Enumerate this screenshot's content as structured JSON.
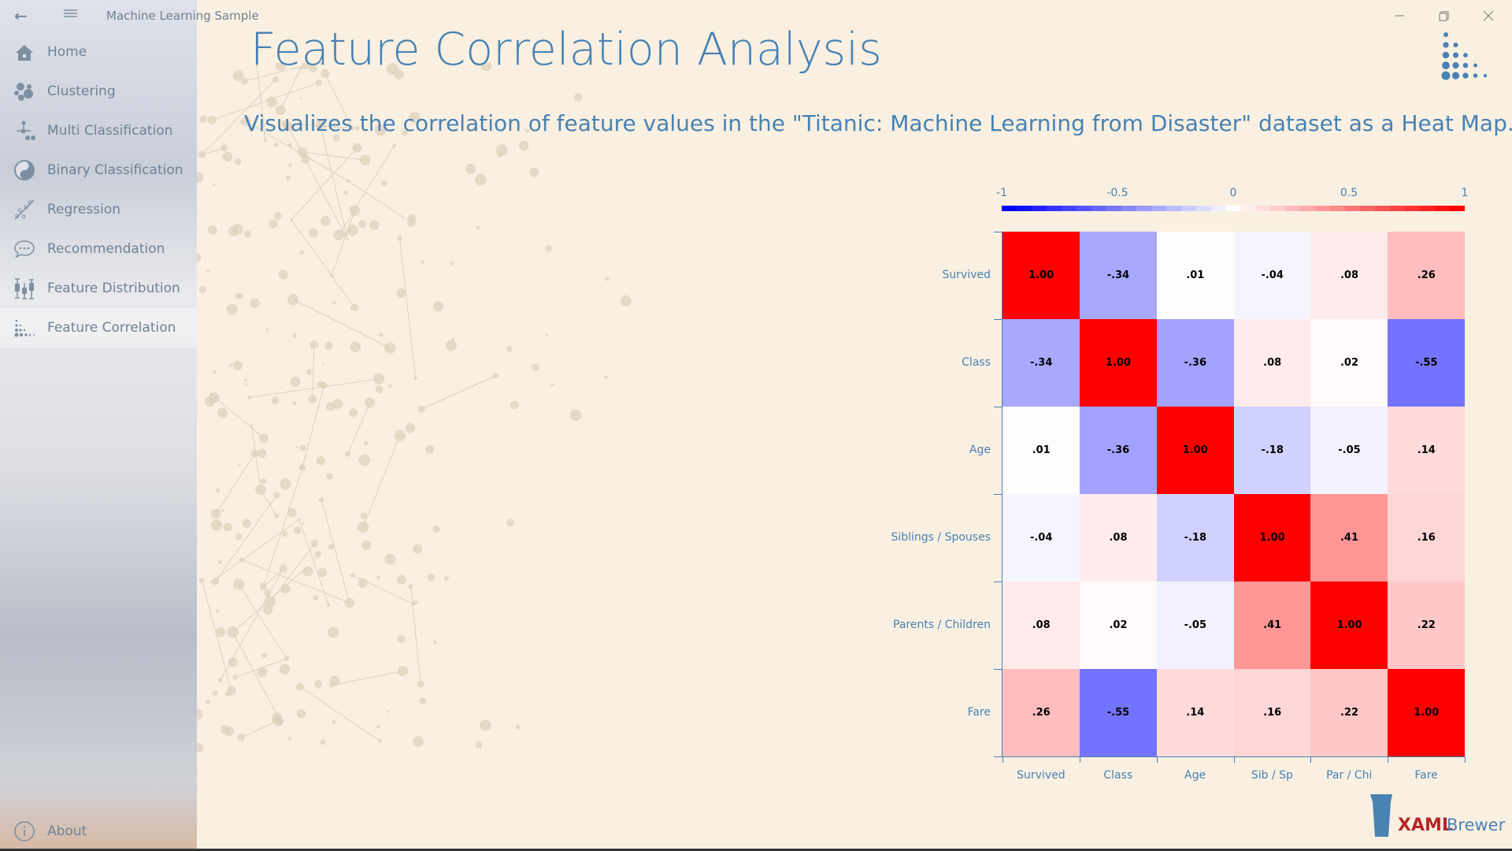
{
  "app_title": "Machine Learning Sample",
  "nav": [
    {
      "label": "Home",
      "icon": "home-icon"
    },
    {
      "label": "Clustering",
      "icon": "clustering-icon"
    },
    {
      "label": "Multi Classification",
      "icon": "multi-classification-icon"
    },
    {
      "label": "Binary Classification",
      "icon": "yin-yang-icon"
    },
    {
      "label": "Regression",
      "icon": "regression-icon"
    },
    {
      "label": "Recommendation",
      "icon": "chat-bubble-icon"
    },
    {
      "label": "Feature Distribution",
      "icon": "box-plot-icon"
    },
    {
      "label": "Feature Correlation",
      "icon": "dot-matrix-icon"
    }
  ],
  "about_label": "About",
  "page_title": "Feature Correlation Analysis",
  "subtitle": "Visualizes the correlation of feature values in the \"Titanic: Machine Learning from Disaster\" dataset as a Heat Map.",
  "brand": {
    "xaml": "XAML",
    "brewer": "Brewer",
    "xaml_color": "#b8252a",
    "brewer_color": "#4a82b4"
  },
  "chart_data": {
    "type": "heatmap",
    "rows": [
      "Survived",
      "Class",
      "Age",
      "Siblings / Spouses",
      "Parents / Children",
      "Fare"
    ],
    "columns": [
      "Survived",
      "Class",
      "Age",
      "Sib / Sp",
      "Par / Chi",
      "Fare"
    ],
    "values": [
      [
        1.0,
        -0.34,
        0.01,
        -0.04,
        0.08,
        0.26
      ],
      [
        -0.34,
        1.0,
        -0.36,
        0.08,
        0.02,
        -0.55
      ],
      [
        0.01,
        -0.36,
        1.0,
        -0.18,
        -0.05,
        0.14
      ],
      [
        -0.04,
        0.08,
        -0.18,
        1.0,
        0.41,
        0.16
      ],
      [
        0.08,
        0.02,
        -0.05,
        0.41,
        1.0,
        0.22
      ],
      [
        0.26,
        -0.55,
        0.14,
        0.16,
        0.22,
        1.0
      ]
    ],
    "labels": [
      [
        "1.00",
        "-.34",
        ".01",
        "-.04",
        ".08",
        ".26"
      ],
      [
        "-.34",
        "1.00",
        "-.36",
        ".08",
        ".02",
        "-.55"
      ],
      [
        ".01",
        "-.36",
        "1.00",
        "-.18",
        "-.05",
        ".14"
      ],
      [
        "-.04",
        ".08",
        "-.18",
        "1.00",
        ".41",
        ".16"
      ],
      [
        ".08",
        ".02",
        "-.05",
        ".41",
        "1.00",
        ".22"
      ],
      [
        ".26",
        "-.55",
        ".14",
        ".16",
        ".22",
        "1.00"
      ]
    ],
    "colorbar": {
      "range": [
        -1,
        1
      ],
      "ticks": [
        "-1",
        "-0.5",
        "0",
        "0.5",
        "1"
      ],
      "low_color": "#0000ff",
      "mid_color": "#ffffff",
      "high_color": "#ff0000"
    }
  }
}
